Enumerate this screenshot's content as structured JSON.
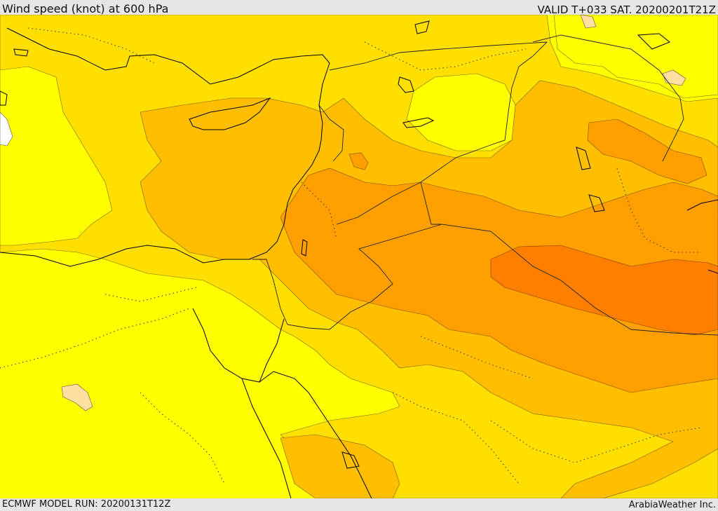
{
  "header": {
    "title": "Wind speed (knot) at 600 hPa",
    "valid": "VALID T+033 SAT. 20200201T21Z"
  },
  "footer": {
    "model_run": "ECMWF MODEL RUN: 20200131T12Z",
    "credit": "ArabiaWeather Inc."
  },
  "colors": {
    "band_lightest": "#ffff00",
    "band_2": "#ffdf00",
    "band_3": "#ffbf00",
    "band_4": "#ffa000",
    "band_5": "#ff8000",
    "band_low": "#ffe0a0",
    "coastline": "#000000",
    "border": "#333333"
  }
}
